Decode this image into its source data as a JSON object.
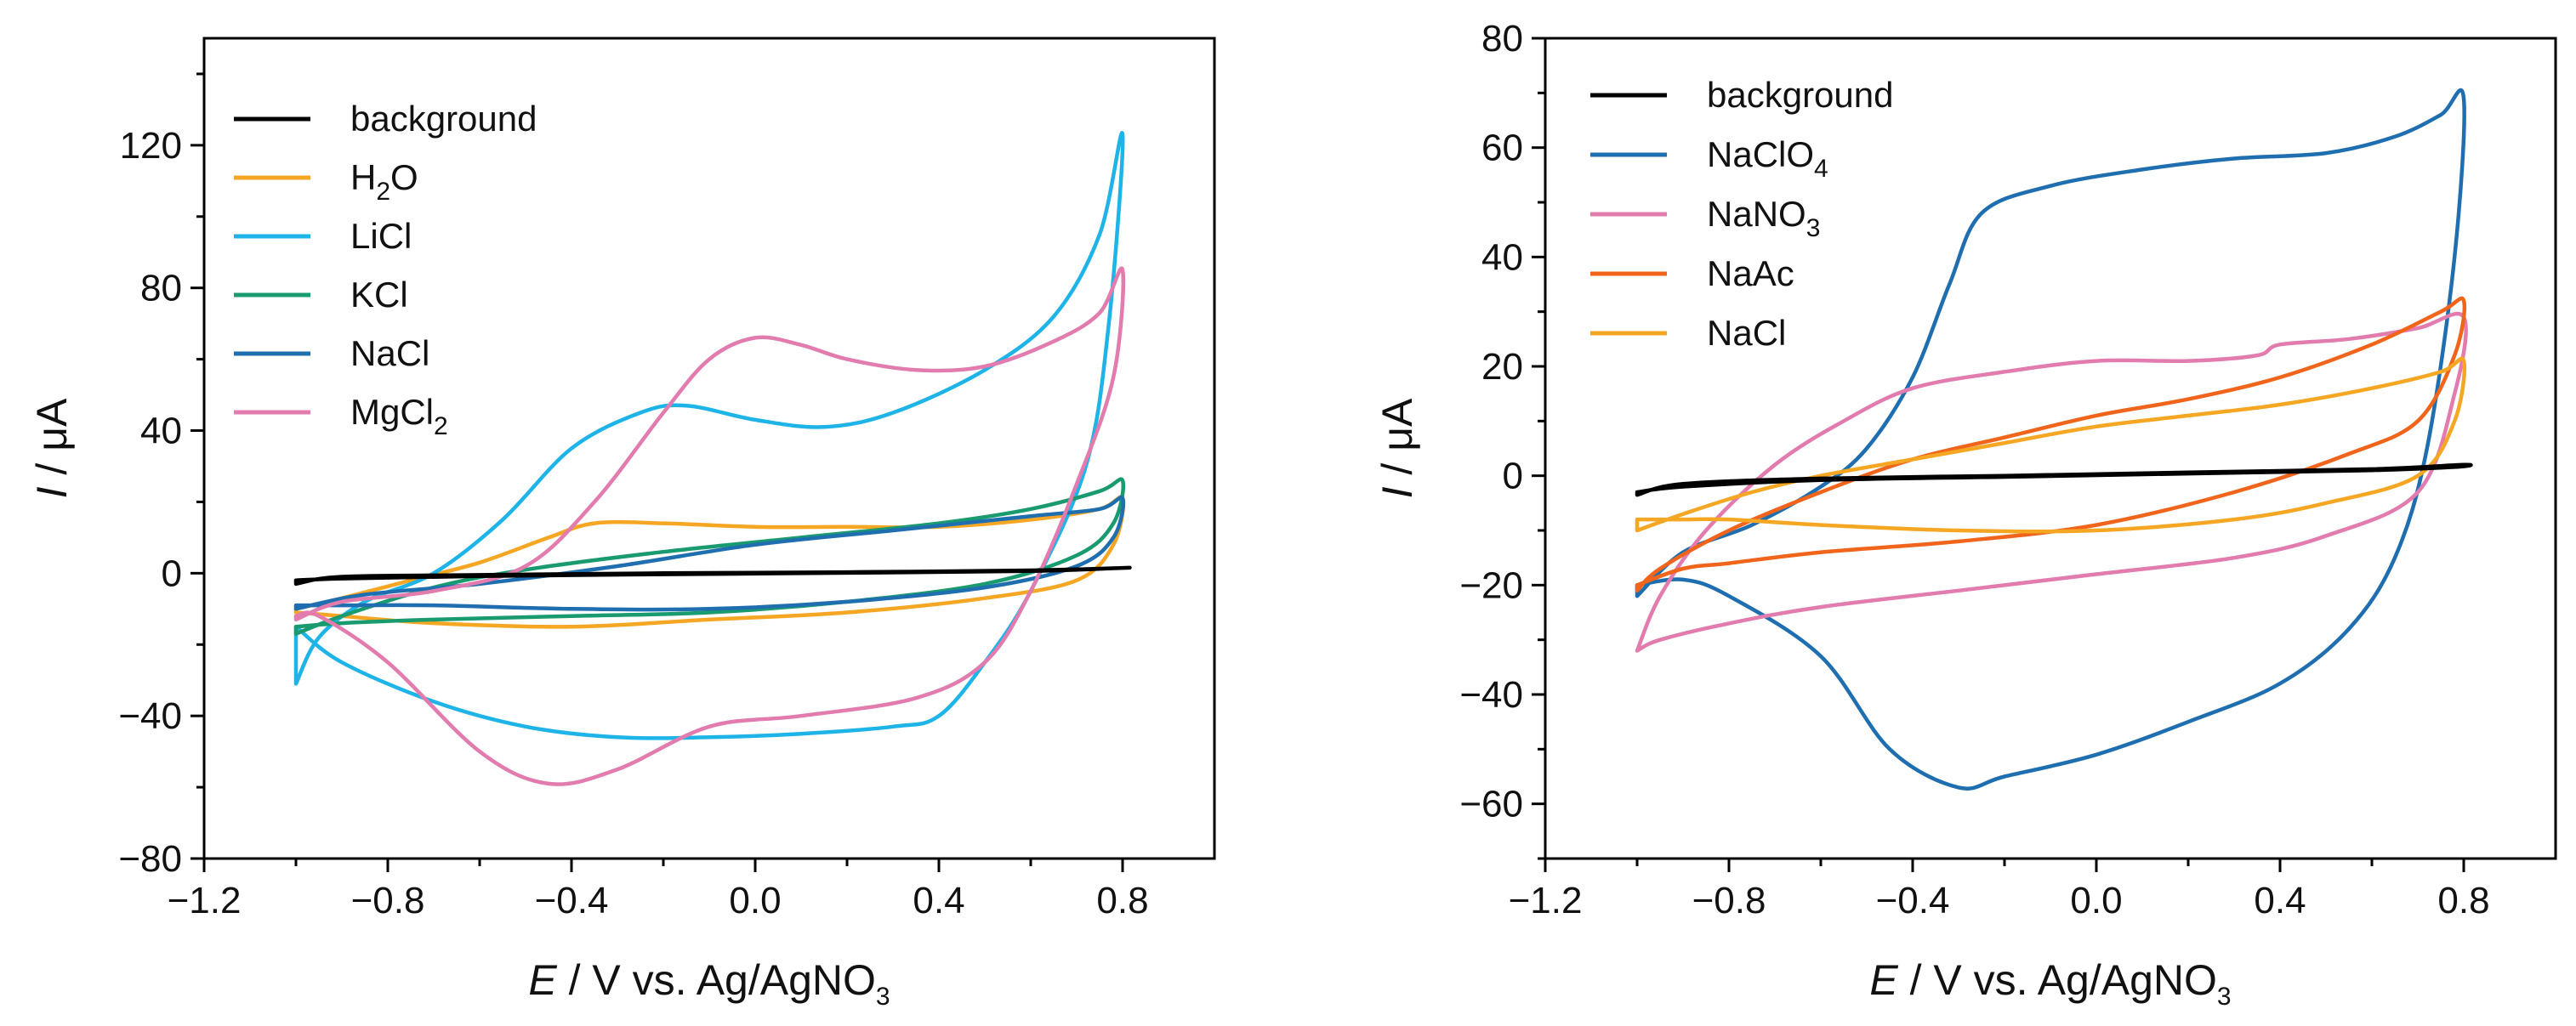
{
  "figure": {
    "panels": 2
  },
  "chart_data": [
    {
      "type": "line",
      "title": "",
      "xlabel": {
        "italic": "E",
        "text": " / V vs. Ag/AgNO",
        "sub": "3"
      },
      "ylabel": {
        "italic": "I",
        "text": " / μA"
      },
      "xlim": [
        -1.2,
        1.0
      ],
      "ylim": [
        -80,
        150
      ],
      "x_ticks": [
        -1.2,
        -0.8,
        -0.4,
        0.0,
        0.4,
        0.8
      ],
      "x_tick_labels": [
        "−1.2",
        "−0.8",
        "−0.4",
        "0.0",
        "0.4",
        "0.8"
      ],
      "y_ticks": [
        -80,
        -40,
        0,
        40,
        80,
        120
      ],
      "y_tick_labels": [
        "−80",
        "−40",
        "0",
        "40",
        "80",
        "120"
      ],
      "grid": false,
      "legend_position": "top-left",
      "series": [
        {
          "name": "background",
          "label": "background",
          "sub": "",
          "color": "#000000",
          "points": [
            [
              -1.0,
              -3
            ],
            [
              -0.9,
              -1
            ],
            [
              -0.6,
              -0.5
            ],
            [
              -0.2,
              0
            ],
            [
              0.2,
              0.3
            ],
            [
              0.6,
              0.8
            ],
            [
              0.8,
              1.5
            ],
            [
              0.78,
              1.4
            ],
            [
              0.6,
              0.6
            ],
            [
              0.2,
              0.1
            ],
            [
              -0.2,
              -0.3
            ],
            [
              -0.6,
              -0.8
            ],
            [
              -0.9,
              -1.5
            ],
            [
              -1.0,
              -2
            ]
          ]
        },
        {
          "name": "H2O",
          "label": "H",
          "sub": "2",
          "label_tail": "O",
          "color": "#F5A623",
          "points": [
            [
              -1.0,
              -10
            ],
            [
              -0.9,
              -7
            ],
            [
              -0.75,
              -2
            ],
            [
              -0.6,
              3
            ],
            [
              -0.45,
              10
            ],
            [
              -0.35,
              14
            ],
            [
              -0.2,
              14
            ],
            [
              0.0,
              13
            ],
            [
              0.2,
              13
            ],
            [
              0.4,
              13
            ],
            [
              0.6,
              15
            ],
            [
              0.75,
              18
            ],
            [
              0.8,
              21
            ],
            [
              0.78,
              8
            ],
            [
              0.7,
              -2
            ],
            [
              0.5,
              -7
            ],
            [
              0.2,
              -11
            ],
            [
              -0.1,
              -13
            ],
            [
              -0.4,
              -15
            ],
            [
              -0.7,
              -14
            ],
            [
              -0.9,
              -12
            ],
            [
              -1.0,
              -11
            ]
          ]
        },
        {
          "name": "LiCl",
          "label": "LiCl",
          "sub": "",
          "color": "#1EB4E8",
          "points": [
            [
              -1.0,
              -31
            ],
            [
              -0.95,
              -18
            ],
            [
              -0.85,
              -8
            ],
            [
              -0.7,
              0
            ],
            [
              -0.55,
              15
            ],
            [
              -0.4,
              35
            ],
            [
              -0.25,
              45
            ],
            [
              -0.15,
              47
            ],
            [
              0.0,
              43
            ],
            [
              0.15,
              41
            ],
            [
              0.3,
              45
            ],
            [
              0.5,
              57
            ],
            [
              0.65,
              72
            ],
            [
              0.75,
              95
            ],
            [
              0.8,
              123
            ],
            [
              0.77,
              70
            ],
            [
              0.72,
              30
            ],
            [
              0.6,
              -5
            ],
            [
              0.5,
              -25
            ],
            [
              0.4,
              -40
            ],
            [
              0.3,
              -43
            ],
            [
              0.1,
              -45
            ],
            [
              -0.1,
              -46
            ],
            [
              -0.3,
              -46
            ],
            [
              -0.5,
              -43
            ],
            [
              -0.7,
              -36
            ],
            [
              -0.9,
              -25
            ],
            [
              -1.0,
              -15
            ]
          ]
        },
        {
          "name": "KCl",
          "label": "KCl",
          "sub": "",
          "color": "#1A9B6F",
          "points": [
            [
              -1.0,
              -17
            ],
            [
              -0.9,
              -12
            ],
            [
              -0.7,
              -4
            ],
            [
              -0.5,
              1
            ],
            [
              -0.2,
              6
            ],
            [
              0.1,
              10
            ],
            [
              0.4,
              14
            ],
            [
              0.6,
              18
            ],
            [
              0.75,
              23
            ],
            [
              0.8,
              26
            ],
            [
              0.78,
              14
            ],
            [
              0.7,
              5
            ],
            [
              0.5,
              -3
            ],
            [
              0.2,
              -8
            ],
            [
              -0.1,
              -11
            ],
            [
              -0.4,
              -12
            ],
            [
              -0.7,
              -13
            ],
            [
              -0.9,
              -14
            ],
            [
              -1.0,
              -15
            ]
          ]
        },
        {
          "name": "NaCl",
          "label": "NaCl",
          "sub": "",
          "color": "#1F6FB0",
          "points": [
            [
              -1.0,
              -10
            ],
            [
              -0.85,
              -6
            ],
            [
              -0.6,
              -3
            ],
            [
              -0.3,
              2
            ],
            [
              0.0,
              8
            ],
            [
              0.3,
              12
            ],
            [
              0.6,
              16
            ],
            [
              0.75,
              18
            ],
            [
              0.8,
              21
            ],
            [
              0.78,
              10
            ],
            [
              0.7,
              2
            ],
            [
              0.5,
              -4
            ],
            [
              0.2,
              -8
            ],
            [
              -0.1,
              -10
            ],
            [
              -0.4,
              -10
            ],
            [
              -0.7,
              -9
            ],
            [
              -0.9,
              -9
            ],
            [
              -1.0,
              -9
            ]
          ]
        },
        {
          "name": "MgCl2",
          "label": "MgCl",
          "sub": "2",
          "color": "#E27BAE",
          "points": [
            [
              -1.0,
              -13
            ],
            [
              -0.9,
              -8
            ],
            [
              -0.7,
              -5
            ],
            [
              -0.5,
              2
            ],
            [
              -0.35,
              20
            ],
            [
              -0.2,
              45
            ],
            [
              -0.1,
              60
            ],
            [
              0.0,
              66
            ],
            [
              0.1,
              64
            ],
            [
              0.2,
              60
            ],
            [
              0.35,
              57
            ],
            [
              0.5,
              58
            ],
            [
              0.65,
              65
            ],
            [
              0.75,
              73
            ],
            [
              0.8,
              85
            ],
            [
              0.78,
              55
            ],
            [
              0.7,
              25
            ],
            [
              0.6,
              -5
            ],
            [
              0.5,
              -25
            ],
            [
              0.35,
              -35
            ],
            [
              0.1,
              -40
            ],
            [
              -0.1,
              -43
            ],
            [
              -0.3,
              -55
            ],
            [
              -0.45,
              -59
            ],
            [
              -0.6,
              -50
            ],
            [
              -0.8,
              -25
            ],
            [
              -0.95,
              -12
            ],
            [
              -1.0,
              -12
            ]
          ]
        }
      ]
    },
    {
      "type": "line",
      "title": "",
      "xlabel": {
        "italic": "E",
        "text": " / V vs. Ag/AgNO",
        "sub": "3"
      },
      "ylabel": {
        "italic": "I",
        "text": " / μA"
      },
      "xlim": [
        -1.2,
        1.0
      ],
      "ylim": [
        -70,
        80
      ],
      "x_ticks": [
        -1.2,
        -0.8,
        -0.4,
        0.0,
        0.4,
        0.8
      ],
      "x_tick_labels": [
        "−1.2",
        "−0.8",
        "−0.4",
        "0.0",
        "0.4",
        "0.8"
      ],
      "y_ticks": [
        -60,
        -40,
        -20,
        0,
        20,
        40,
        60,
        80
      ],
      "y_tick_labels": [
        "−60",
        "−40",
        "−20",
        "0",
        "20",
        "40",
        "60",
        "80"
      ],
      "grid": false,
      "legend_position": "top-left",
      "series": [
        {
          "name": "background",
          "label": "background",
          "sub": "",
          "color": "#000000",
          "points": [
            [
              -1.0,
              -3.5
            ],
            [
              -0.9,
              -1.5
            ],
            [
              -0.6,
              -0.5
            ],
            [
              -0.2,
              0
            ],
            [
              0.2,
              0.6
            ],
            [
              0.6,
              1.2
            ],
            [
              0.8,
              2
            ],
            [
              0.78,
              1.6
            ],
            [
              0.6,
              1.0
            ],
            [
              0.2,
              0.4
            ],
            [
              -0.2,
              -0.2
            ],
            [
              -0.6,
              -0.8
            ],
            [
              -0.9,
              -2
            ],
            [
              -1.0,
              -3
            ]
          ]
        },
        {
          "name": "NaClO4",
          "label": "NaClO",
          "sub": "4",
          "color": "#1F6FB0",
          "points": [
            [
              -1.0,
              -22
            ],
            [
              -0.9,
              -14
            ],
            [
              -0.75,
              -9
            ],
            [
              -0.6,
              -2
            ],
            [
              -0.5,
              5
            ],
            [
              -0.4,
              18
            ],
            [
              -0.32,
              35
            ],
            [
              -0.25,
              48
            ],
            [
              -0.1,
              53
            ],
            [
              0.1,
              56
            ],
            [
              0.3,
              58
            ],
            [
              0.5,
              59
            ],
            [
              0.65,
              62
            ],
            [
              0.75,
              66
            ],
            [
              0.8,
              69
            ],
            [
              0.78,
              40
            ],
            [
              0.72,
              5
            ],
            [
              0.65,
              -15
            ],
            [
              0.55,
              -28
            ],
            [
              0.4,
              -38
            ],
            [
              0.2,
              -45
            ],
            [
              0.0,
              -51
            ],
            [
              -0.2,
              -55
            ],
            [
              -0.3,
              -57
            ],
            [
              -0.45,
              -50
            ],
            [
              -0.6,
              -33
            ],
            [
              -0.8,
              -22
            ],
            [
              -0.9,
              -19
            ],
            [
              -1.0,
              -20
            ]
          ]
        },
        {
          "name": "NaNO3",
          "label": "NaNO",
          "sub": "3",
          "color": "#E27BAE",
          "points": [
            [
              -1.0,
              -32
            ],
            [
              -0.95,
              -22
            ],
            [
              -0.85,
              -10
            ],
            [
              -0.7,
              2
            ],
            [
              -0.55,
              10
            ],
            [
              -0.4,
              16
            ],
            [
              -0.2,
              19
            ],
            [
              0.0,
              21
            ],
            [
              0.2,
              21
            ],
            [
              0.35,
              22
            ],
            [
              0.4,
              24
            ],
            [
              0.55,
              25
            ],
            [
              0.7,
              27
            ],
            [
              0.8,
              29
            ],
            [
              0.78,
              15
            ],
            [
              0.7,
              -3
            ],
            [
              0.5,
              -11
            ],
            [
              0.3,
              -15
            ],
            [
              0.0,
              -18
            ],
            [
              -0.3,
              -21
            ],
            [
              -0.6,
              -24
            ],
            [
              -0.8,
              -27
            ],
            [
              -0.95,
              -30
            ],
            [
              -1.0,
              -32
            ]
          ]
        },
        {
          "name": "NaAc",
          "label": "NaAc",
          "sub": "",
          "color": "#F0651B",
          "points": [
            [
              -1.0,
              -21
            ],
            [
              -0.95,
              -17
            ],
            [
              -0.8,
              -10
            ],
            [
              -0.6,
              -3
            ],
            [
              -0.4,
              3
            ],
            [
              -0.2,
              7
            ],
            [
              0.0,
              11
            ],
            [
              0.2,
              14
            ],
            [
              0.4,
              18
            ],
            [
              0.6,
              24
            ],
            [
              0.75,
              30
            ],
            [
              0.8,
              32
            ],
            [
              0.78,
              22
            ],
            [
              0.7,
              10
            ],
            [
              0.55,
              4
            ],
            [
              0.3,
              -3
            ],
            [
              0.0,
              -9
            ],
            [
              -0.3,
              -12
            ],
            [
              -0.6,
              -14
            ],
            [
              -0.8,
              -16
            ],
            [
              -0.9,
              -17
            ],
            [
              -1.0,
              -20
            ]
          ]
        },
        {
          "name": "NaCl",
          "label": "NaCl",
          "sub": "",
          "color": "#F5A623",
          "points": [
            [
              -1.0,
              -10
            ],
            [
              -0.9,
              -7
            ],
            [
              -0.75,
              -3
            ],
            [
              -0.6,
              0
            ],
            [
              -0.4,
              3
            ],
            [
              -0.2,
              6
            ],
            [
              0.0,
              9
            ],
            [
              0.2,
              11
            ],
            [
              0.4,
              13
            ],
            [
              0.6,
              16
            ],
            [
              0.75,
              19
            ],
            [
              0.8,
              21
            ],
            [
              0.78,
              10
            ],
            [
              0.7,
              0
            ],
            [
              0.5,
              -5
            ],
            [
              0.3,
              -8
            ],
            [
              0.0,
              -10
            ],
            [
              -0.3,
              -10
            ],
            [
              -0.6,
              -9
            ],
            [
              -0.8,
              -8
            ],
            [
              -0.9,
              -8
            ],
            [
              -1.0,
              -8
            ]
          ]
        }
      ]
    }
  ]
}
